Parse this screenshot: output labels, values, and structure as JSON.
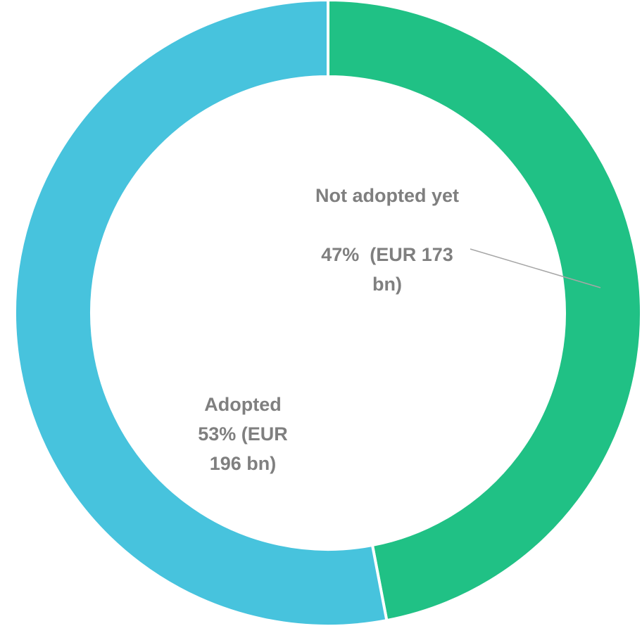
{
  "chart_data": {
    "type": "donut",
    "categories": [
      "Not adopted yet",
      "Adopted"
    ],
    "values": [
      47,
      53
    ],
    "value_labels": [
      "47%  (EUR 173 bn)",
      "53% (EUR 196 bn)"
    ],
    "colors": [
      "#20c185",
      "#47c3dd"
    ]
  }
}
